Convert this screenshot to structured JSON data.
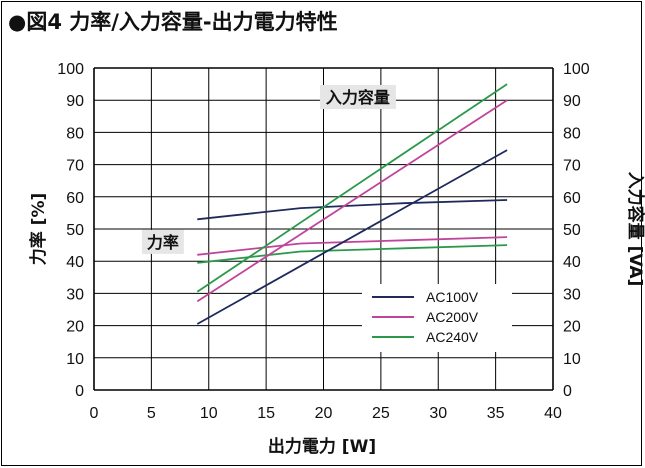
{
  "title": "●図4 力率/入力容量-出力電力特性",
  "chart_data": {
    "type": "line",
    "title": "●図4 力率/入力容量-出力電力特性",
    "xlabel": "出力電力 [W]",
    "ylabel_left": "力率 [%]",
    "ylabel_right": "入力容量 [VA]",
    "xlim": [
      0,
      40
    ],
    "ylim": [
      0,
      100
    ],
    "x_ticks": [
      "0",
      "5",
      "10",
      "15",
      "20",
      "25",
      "30",
      "35",
      "40"
    ],
    "y_ticks": [
      "0",
      "10",
      "20",
      "30",
      "40",
      "50",
      "60",
      "70",
      "80",
      "90",
      "100"
    ],
    "grid": true,
    "legend_position": "lower-right",
    "annotations": [
      {
        "text": "入力容量",
        "x": 23,
        "y": 91
      },
      {
        "text": "力率",
        "x": 6,
        "y": 46
      }
    ],
    "series": [
      {
        "name": "AC100V",
        "group": "力率",
        "color": "#1f2a5c",
        "x": [
          9,
          18,
          27,
          36
        ],
        "y": [
          53,
          56.5,
          58,
          59
        ]
      },
      {
        "name": "AC200V",
        "group": "力率",
        "color": "#c0449a",
        "x": [
          9,
          18,
          27,
          36
        ],
        "y": [
          42,
          45.5,
          46.5,
          47.5
        ]
      },
      {
        "name": "AC240V",
        "group": "力率",
        "color": "#2a9a4a",
        "x": [
          9,
          18,
          27,
          36
        ],
        "y": [
          39.5,
          43,
          44,
          45
        ]
      },
      {
        "name": "AC100V",
        "group": "入力容量",
        "color": "#1f2a5c",
        "x": [
          9,
          36
        ],
        "y": [
          20.5,
          74.5
        ]
      },
      {
        "name": "AC200V",
        "group": "入力容量",
        "color": "#c0449a",
        "x": [
          9,
          36
        ],
        "y": [
          27.5,
          90
        ]
      },
      {
        "name": "AC240V",
        "group": "入力容量",
        "color": "#2a9a4a",
        "x": [
          9,
          36
        ],
        "y": [
          30.5,
          95
        ]
      }
    ],
    "legend": [
      {
        "name": "AC100V",
        "color": "#1f2a5c"
      },
      {
        "name": "AC200V",
        "color": "#c0449a"
      },
      {
        "name": "AC240V",
        "color": "#2a9a4a"
      }
    ]
  }
}
